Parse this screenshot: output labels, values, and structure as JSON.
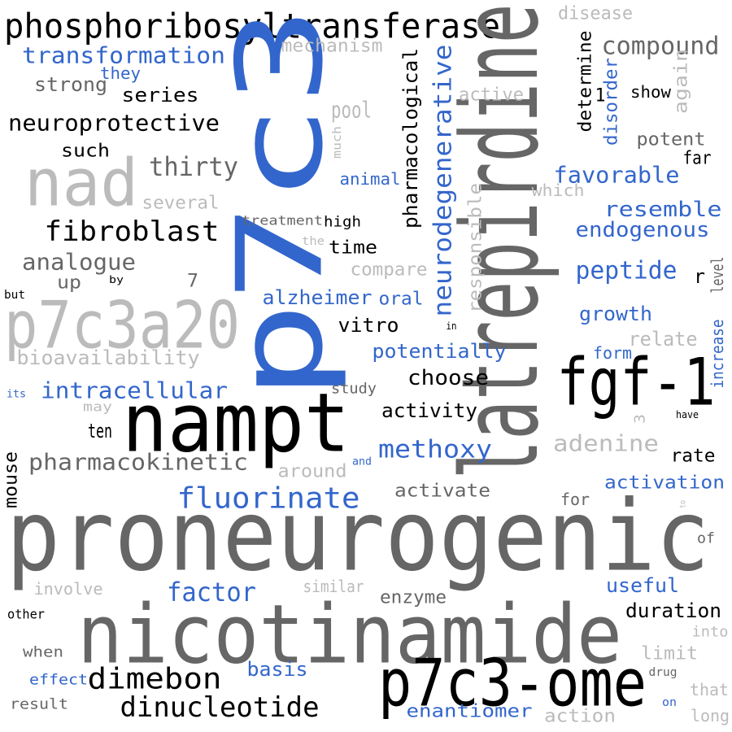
{
  "words": [
    "phosphoribosyltransferase",
    "p7c3",
    "latrepirdine",
    "nampt",
    "proneurogenic",
    "nicotinamide",
    "p7c3-ome",
    "fgf-1",
    "nad",
    "p7c3a20",
    "dimebon",
    "dinucleotide",
    "fluorinate",
    "methoxy",
    "factor",
    "transformation",
    "compound",
    "neuroprotective",
    "fibroblast",
    "thirty",
    "analogue",
    "pharmacokinetic",
    "intracellular",
    "bioavailability",
    "neurodegenerative",
    "pharmacological",
    "responsible",
    "determine",
    "disorder",
    "again",
    "increase",
    "level",
    "mouse",
    "much",
    "3",
    "1",
    "to",
    "in",
    "by",
    "and",
    "its",
    "have",
    "but",
    "the",
    "other",
    "on",
    "disease",
    "mechanism",
    "they",
    "strong",
    "series",
    "pool",
    "active",
    "show",
    "potent",
    "far",
    "such",
    "several",
    "animal",
    "which",
    "favorable",
    "resemble",
    "endogenous",
    "treatment",
    "high",
    "time",
    "compare",
    "up",
    "7",
    "peptide",
    "r",
    "alzheimer",
    "oral",
    "vitro",
    "growth",
    "relate",
    "form",
    "potentially",
    "choose",
    "study",
    "activity",
    "may",
    "ten",
    "adenine",
    "rate",
    "around",
    "activate",
    "for",
    "activation",
    "of",
    "involve",
    "similar",
    "enzyme",
    "useful",
    "duration",
    "into",
    "when",
    "limit",
    "basis",
    "drug",
    "effect",
    "that",
    "result",
    "enantiomer",
    "action",
    "long"
  ]
}
